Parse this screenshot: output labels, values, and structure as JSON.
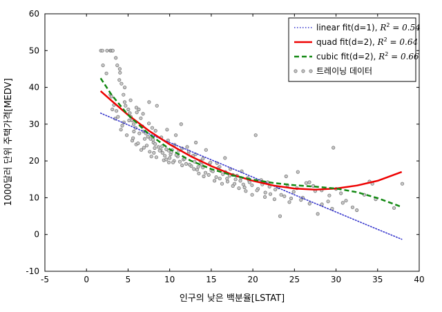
{
  "chart_data": {
    "type": "scatter",
    "title": "",
    "xlabel": "인구의 낮은 백분율[LSTAT]",
    "ylabel": "1000달러 단위 주택가격[MEDV]",
    "xlim": [
      -5,
      40
    ],
    "ylim": [
      -10,
      60
    ],
    "xticks": [
      -5,
      0,
      5,
      10,
      15,
      20,
      25,
      30,
      35,
      40
    ],
    "yticks": [
      -10,
      0,
      10,
      20,
      30,
      40,
      50,
      60
    ],
    "grid": false,
    "legend_position": "top-right",
    "legend": [
      {
        "label": "linear fit(d=1), R² = 0.54",
        "text": "linear fit(d=1), ",
        "r2": "0.54",
        "style": "dotted",
        "color": "#3333cc"
      },
      {
        "label": "quad fit(d=2), R² = 0.64",
        "text": "quad fit(d=2), ",
        "r2": "0.64",
        "style": "solid",
        "color": "#ee0000"
      },
      {
        "label": "cubic fit(d=2), R² = 0.66",
        "text": "cubic fit(d=2), ",
        "r2": "0.66",
        "style": "dashed",
        "color": "#118811"
      },
      {
        "label": "트레이닝 데이터",
        "text": "트레이닝 데이터",
        "style": "markers",
        "color": "#888888"
      }
    ],
    "series": [
      {
        "name": "linear fit(d=1)",
        "type": "line",
        "x": [
          1.7,
          5,
          10,
          15,
          20,
          25,
          30,
          35,
          37.9
        ],
        "y": [
          33.0,
          29.8,
          25.0,
          20.3,
          15.6,
          10.8,
          6.1,
          1.4,
          -1.3
        ]
      },
      {
        "name": "quad fit(d=2)",
        "type": "line",
        "x": [
          1.7,
          3,
          5,
          7.5,
          10,
          12.5,
          15,
          17.5,
          20,
          22.5,
          25,
          27.5,
          30,
          32.5,
          35,
          37.9
        ],
        "y": [
          39.0,
          36.4,
          32.5,
          28.2,
          24.5,
          21.3,
          18.6,
          16.3,
          14.6,
          13.3,
          12.5,
          12.2,
          12.5,
          13.3,
          14.6,
          17.0
        ]
      },
      {
        "name": "cubic fit(d=2)",
        "type": "line",
        "x": [
          1.7,
          3,
          5,
          7.5,
          10,
          12.5,
          15,
          17.5,
          20,
          22.5,
          25,
          27.5,
          30,
          32.5,
          35,
          37.9
        ],
        "y": [
          42.5,
          38.0,
          32.5,
          27.3,
          23.2,
          20.1,
          17.8,
          16.1,
          14.9,
          14.0,
          13.4,
          13.0,
          12.5,
          11.5,
          9.9,
          7.5
        ]
      },
      {
        "name": "트레이닝 데이터",
        "type": "scatter",
        "x": [
          1.73,
          1.92,
          2.47,
          2.87,
          2.94,
          3.11,
          3.16,
          3.53,
          3.7,
          3.95,
          4.03,
          4.21,
          4.45,
          4.59,
          4.7,
          5.03,
          5.21,
          5.33,
          5.49,
          5.68,
          5.9,
          6.05,
          6.29,
          6.53,
          6.72,
          6.86,
          7.14,
          7.39,
          7.53,
          7.7,
          7.9,
          8.05,
          8.26,
          8.47,
          8.65,
          8.93,
          9.14,
          9.42,
          9.69,
          9.88,
          10.11,
          10.3,
          10.53,
          10.74,
          10.97,
          11.22,
          11.38,
          11.66,
          11.98,
          12.27,
          12.6,
          12.92,
          13.15,
          13.44,
          13.51,
          13.83,
          14.1,
          14.37,
          14.69,
          15.02,
          15.39,
          15.7,
          16.03,
          16.3,
          16.65,
          16.96,
          17.21,
          17.6,
          17.92,
          18.33,
          18.66,
          18.85,
          19.15,
          19.52,
          19.92,
          20.34,
          20.62,
          21.14,
          21.45,
          21.78,
          22.11,
          22.6,
          23.09,
          23.27,
          23.79,
          24.16,
          24.39,
          24.91,
          25.41,
          25.79,
          26.42,
          26.82,
          27.26,
          27.8,
          28.28,
          29.05,
          29.53,
          29.68,
          30.59,
          30.81,
          31.99,
          34.02,
          34.37,
          34.77,
          36.98,
          37.97,
          2.88,
          3.11,
          3.45,
          3.78,
          4.14,
          4.5,
          4.85,
          5.12,
          5.5,
          5.7,
          5.98,
          6.36,
          6.58,
          7.0,
          7.25,
          7.6,
          8.0,
          8.2,
          8.4,
          8.8,
          9.1,
          9.3,
          9.6,
          10.0,
          10.2,
          10.4,
          10.8,
          11.1,
          11.5,
          11.8,
          12.1,
          12.4,
          12.8,
          13.0,
          13.3,
          13.7,
          14.0,
          14.3,
          14.8,
          15.2,
          15.6,
          16.0,
          16.4,
          16.9,
          17.3,
          17.8,
          18.1,
          18.5,
          19.0,
          19.4,
          19.9,
          20.5,
          21.0,
          21.5,
          22.0,
          22.7,
          23.4,
          24.0,
          24.6,
          25.3,
          26.0,
          26.8,
          27.5,
          28.3,
          29.2,
          30.0,
          31.2,
          32.5,
          33.4,
          4.0,
          4.6,
          5.3,
          6.0,
          6.8,
          7.5,
          8.3,
          9.0,
          9.8,
          10.6,
          11.5,
          12.3,
          13.1,
          14.0,
          14.9,
          15.8,
          16.7,
          17.6,
          18.6,
          19.6,
          1.98,
          2.4,
          3.0,
          3.3,
          3.6,
          4.3,
          5.6,
          6.2,
          6.9,
          7.8,
          8.1,
          9.6,
          9.9
        ],
        "y": [
          50.0,
          50.0,
          50.0,
          50.0,
          50.0,
          50.0,
          50.0,
          48.0,
          46.0,
          42.0,
          44.0,
          41.0,
          38.0,
          36.0,
          35.0,
          34.0,
          33.0,
          32.0,
          31.0,
          30.0,
          29.0,
          33.2,
          34.0,
          31.6,
          29.4,
          28.0,
          27.5,
          26.6,
          36.0,
          26.0,
          29.0,
          25.0,
          24.6,
          35.0,
          23.8,
          23.0,
          22.2,
          21.4,
          28.5,
          22.8,
          21.8,
          23.0,
          20.0,
          27.0,
          21.2,
          19.8,
          30.0,
          20.4,
          19.2,
          22.0,
          18.6,
          17.8,
          25.0,
          18.4,
          16.6,
          19.0,
          15.8,
          23.0,
          16.2,
          17.4,
          14.6,
          19.4,
          15.2,
          13.8,
          20.8,
          14.4,
          16.0,
          13.2,
          15.0,
          12.6,
          17.2,
          13.6,
          11.8,
          14.8,
          10.8,
          27.0,
          12.4,
          13.6,
          10.2,
          14.2,
          11.0,
          9.6,
          12.8,
          5.0,
          10.4,
          13.4,
          8.8,
          11.6,
          17.0,
          9.4,
          14.0,
          8.4,
          13.2,
          5.6,
          12.0,
          9.0,
          7.0,
          23.6,
          11.2,
          8.6,
          7.4,
          14.4,
          13.8,
          9.6,
          7.2,
          13.8,
          38.0,
          34.0,
          31.5,
          32.0,
          28.5,
          30.5,
          27.0,
          31.0,
          25.5,
          28.0,
          24.5,
          27.5,
          23.0,
          26.0,
          24.2,
          22.5,
          25.8,
          23.5,
          21.0,
          22.8,
          24.0,
          20.2,
          23.2,
          20.8,
          22.4,
          19.6,
          21.6,
          22.8,
          18.8,
          20.6,
          23.8,
          19.0,
          21.4,
          19.8,
          17.6,
          20.0,
          18.2,
          16.8,
          19.2,
          17.2,
          15.6,
          18.4,
          16.4,
          15.2,
          17.8,
          13.8,
          16.0,
          14.6,
          12.8,
          15.4,
          13.4,
          12.0,
          14.8,
          11.4,
          13.0,
          12.2,
          10.8,
          15.8,
          9.8,
          12.6,
          10.0,
          14.2,
          11.8,
          8.2,
          10.6,
          12.4,
          9.2,
          6.6,
          10.8,
          45.0,
          40.0,
          36.5,
          34.5,
          32.8,
          30.2,
          28.2,
          26.4,
          25.6,
          24.4,
          23.4,
          22.6,
          21.8,
          20.6,
          19.6,
          18.0,
          17.0,
          16.2,
          15.4,
          14.2,
          46.0,
          43.8,
          37.5,
          35.2,
          33.6,
          29.6,
          26.2,
          24.8,
          23.6,
          21.2,
          22.2,
          20.4,
          19.6
        ]
      }
    ]
  }
}
